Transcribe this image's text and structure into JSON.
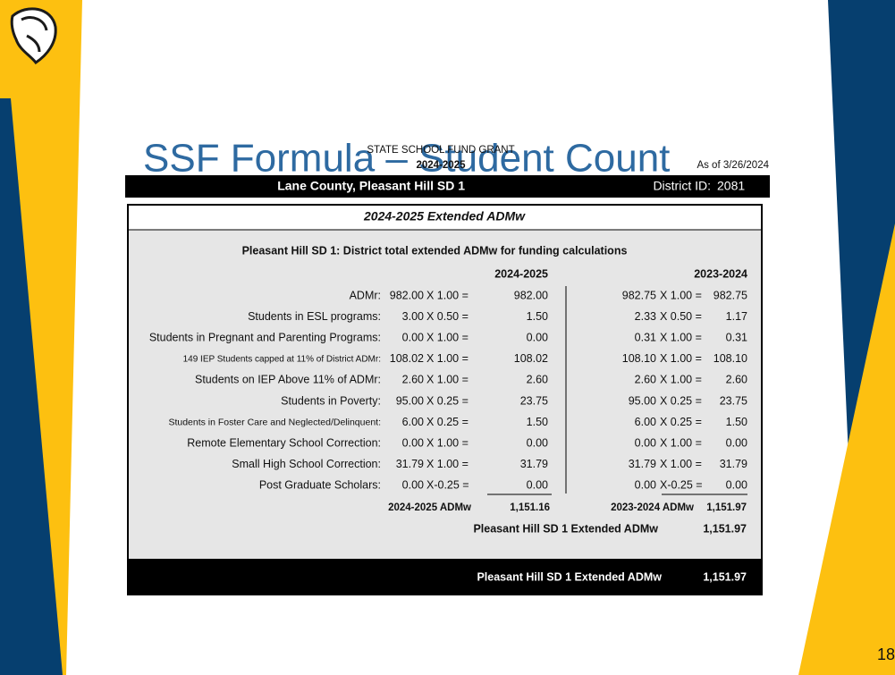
{
  "slide": {
    "title": "SSF Formula – Student Count",
    "page_number": "18"
  },
  "header": {
    "grant": "STATE SCHOOL FUND GRANT",
    "year": "2024-2025",
    "as_of": "As of 3/26/2024",
    "district": "Lane County, Pleasant Hill SD 1",
    "district_id_label": "District ID:",
    "district_id": "2081"
  },
  "table": {
    "section_title": "2024-2025 Extended ADMw",
    "subtitle": "Pleasant Hill SD 1: District  total extended ADMw for funding calculations",
    "col_current": "2024-2025",
    "col_prior": "2023-2024",
    "rows": [
      [
        "ADMr:",
        "982.00",
        "X 1.00 =",
        "982.00",
        "982.75",
        "X 1.00 =",
        "982.75"
      ],
      [
        "Students in ESL programs:",
        "3.00",
        "X 0.50 =",
        "1.50",
        "2.33",
        "X 0.50 =",
        "1.17"
      ],
      [
        "Students in Pregnant and Parenting Programs:",
        "0.00",
        "X 1.00 =",
        "0.00",
        "0.31",
        "X 1.00 =",
        "0.31"
      ],
      [
        "149 IEP Students capped at 11% of District ADMr:",
        "108.02",
        "X 1.00 =",
        "108.02",
        "108.10",
        "X 1.00 =",
        "108.10"
      ],
      [
        "Students on IEP Above 11% of ADMr:",
        "2.60",
        "X 1.00 =",
        "2.60",
        "2.60",
        "X 1.00 =",
        "2.60"
      ],
      [
        "Students in Poverty:",
        "95.00",
        "X 0.25 =",
        "23.75",
        "95.00",
        "X 0.25 =",
        "23.75"
      ],
      [
        "Students in Foster Care and Neglected/Delinquent:",
        "6.00",
        "X 0.25 =",
        "1.50",
        "6.00",
        "X 0.25 =",
        "1.50"
      ],
      [
        "Remote Elementary School Correction:",
        "0.00",
        "X 1.00 =",
        "0.00",
        "0.00",
        "X 1.00 =",
        "0.00"
      ],
      [
        "Small High School Correction:",
        "31.79",
        "X 1.00 =",
        "31.79",
        "31.79",
        "X 1.00 =",
        "31.79"
      ],
      [
        "Post Graduate Scholars:",
        "0.00",
        "X-0.25 =",
        "0.00",
        "0.00",
        "X-0.25 =",
        "0.00"
      ]
    ],
    "total_current_label": "2024-2025 ADMw",
    "total_current": "1,151.16",
    "total_prior_label": "2023-2024 ADMw",
    "total_prior": "1,151.97",
    "extended_label": "Pleasant Hill SD 1 Extended ADMw",
    "extended_value": "1,151.97"
  },
  "footer": {
    "label": "Pleasant Hill SD 1 Extended ADMw",
    "value": "1,151.97"
  }
}
